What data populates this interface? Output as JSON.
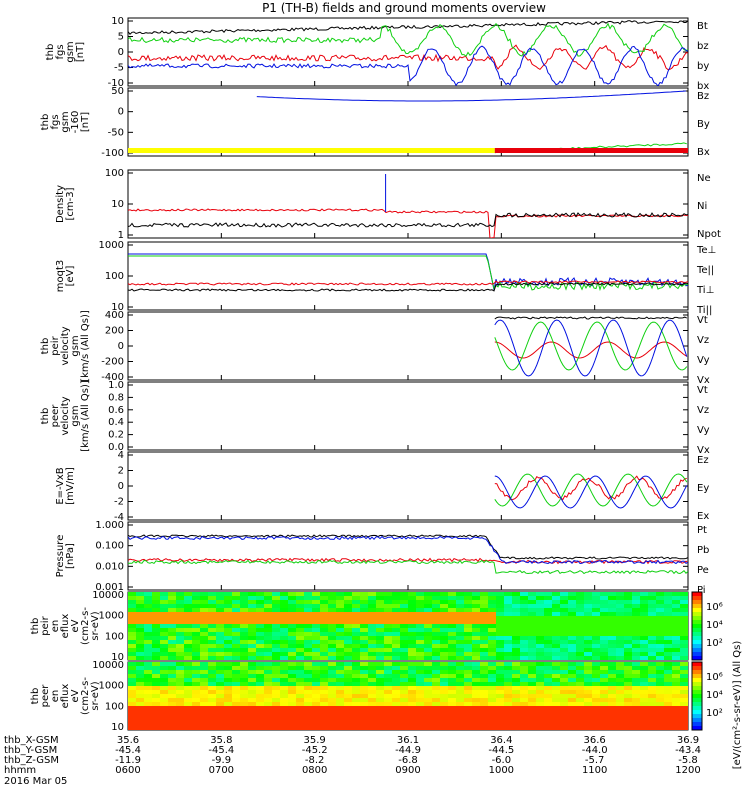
{
  "title": "P1 (TH-B) fields and ground moments overview",
  "colors": {
    "black": "#000000",
    "red": "#e8000b",
    "green": "#10d010",
    "blue": "#0010e0",
    "yellow": "#ffff00"
  },
  "chart_data": [
    {
      "type": "line",
      "ylabel": [
        "thb",
        "fgs",
        "gsm",
        "[nT]"
      ],
      "ylim": [
        -10,
        10
      ],
      "yticks": [
        "10",
        "5",
        "0",
        "-5",
        "-10"
      ],
      "series": [
        {
          "name": "Bt",
          "color": "black"
        },
        {
          "name": "bz",
          "color": "red"
        },
        {
          "name": "by",
          "color": "green"
        },
        {
          "name": "bx",
          "color": "blue"
        }
      ]
    },
    {
      "type": "line",
      "ylabel": [
        "thb",
        "fgs",
        "gsm",
        "-160",
        "[nT]"
      ],
      "ylim": [
        -150,
        50
      ],
      "yticks": [
        "50",
        "0",
        "-50",
        "-100"
      ],
      "series": [
        {
          "name": "Bz",
          "color": "red"
        },
        {
          "name": "By",
          "color": "green"
        },
        {
          "name": "Bx",
          "color": "blue"
        }
      ]
    },
    {
      "type": "line",
      "ylabel": [
        "Density",
        "[cm-3]"
      ],
      "log": true,
      "yticks": [
        "100",
        "10",
        "1"
      ],
      "series": [
        {
          "name": "Ne",
          "color": "red"
        },
        {
          "name": "Ni",
          "color": "black"
        },
        {
          "name": "Npot",
          "color": "blue"
        }
      ]
    },
    {
      "type": "line",
      "ylabel": [
        "moqt3",
        "[eV]"
      ],
      "log": true,
      "yticks": [
        "1000",
        "100",
        "10"
      ],
      "series": [
        {
          "name": "Te⊥",
          "color": "red"
        },
        {
          "name": "Te||",
          "color": "black"
        },
        {
          "name": "Ti⊥",
          "color": "green"
        },
        {
          "name": "Ti||",
          "color": "green"
        }
      ]
    },
    {
      "type": "line",
      "ylabel": [
        "thb",
        "peir",
        "velocity",
        "gsm",
        "[km/s (All Qs)]"
      ],
      "ylim": [
        -400,
        400
      ],
      "yticks": [
        "400",
        "200",
        "0",
        "-200",
        "-400"
      ],
      "series": [
        {
          "name": "Vt",
          "color": "black"
        },
        {
          "name": "Vz",
          "color": "red"
        },
        {
          "name": "Vy",
          "color": "green"
        },
        {
          "name": "Vx",
          "color": "blue"
        }
      ]
    },
    {
      "type": "line",
      "ylabel": [
        "thb",
        "peer",
        "velocity",
        "gsm",
        "[km/s (All Qs)]"
      ],
      "ylim": [
        0,
        1
      ],
      "yticks": [
        "1.0",
        "0.8",
        "0.6",
        "0.4",
        "0.2",
        "0.0"
      ],
      "series": [
        {
          "name": "Vt",
          "color": "black"
        },
        {
          "name": "Vz",
          "color": "red"
        },
        {
          "name": "Vy",
          "color": "green"
        },
        {
          "name": "Vx",
          "color": "blue"
        }
      ]
    },
    {
      "type": "line",
      "ylabel": [
        "E=-VxB",
        "[mV/m]"
      ],
      "ylim": [
        -4,
        4
      ],
      "yticks": [
        "4",
        "2",
        "0",
        "-2",
        "-4"
      ],
      "series": [
        {
          "name": "Ez",
          "color": "red"
        },
        {
          "name": "Ey",
          "color": "green"
        },
        {
          "name": "Ex",
          "color": "blue"
        }
      ]
    },
    {
      "type": "line",
      "ylabel": [
        "Pressure",
        "[nPa]"
      ],
      "log": true,
      "yticks": [
        "1.000",
        "0.100",
        "0.010",
        "0.001"
      ],
      "series": [
        {
          "name": "Pt",
          "color": "black"
        },
        {
          "name": "Pb",
          "color": "red"
        },
        {
          "name": "Pe",
          "color": "green"
        },
        {
          "name": "Pi",
          "color": "blue"
        }
      ]
    },
    {
      "type": "heatmap",
      "ylabel": [
        "thb",
        "peir",
        "en",
        "eflux",
        "eV",
        "(cm2-s-",
        "sr-eV)"
      ],
      "log": true,
      "yticks": [
        "10000",
        "1000",
        "100",
        "10"
      ],
      "colorbar": {
        "ticks": [
          "10⁶",
          "10⁴",
          "10²"
        ]
      }
    },
    {
      "type": "heatmap",
      "ylabel": [
        "thb",
        "peer",
        "en",
        "eflux",
        "eV",
        "(cm2-s-",
        "sr-eV)"
      ],
      "log": true,
      "yticks": [
        "10000",
        "1000",
        "100",
        "10"
      ],
      "colorbar": {
        "ticks": [
          "10⁶",
          "10⁴",
          "10²"
        ]
      }
    }
  ],
  "colorbar_label": "[eV/(cm²-s-sr-eV)] (All Qs)",
  "xaxis": {
    "row_labels": [
      "thb_X-GSM",
      "thb_Y-GSM",
      "thb_Z-GSM",
      "hhmm"
    ],
    "date": "2016 Mar 05",
    "ticks": [
      [
        "35.6",
        "-45.4",
        "-11.9",
        "0600"
      ],
      [
        "35.8",
        "-45.4",
        "-9.9",
        "0700"
      ],
      [
        "35.9",
        "-45.2",
        "-8.2",
        "0800"
      ],
      [
        "36.1",
        "-44.9",
        "-6.8",
        "0900"
      ],
      [
        "36.4",
        "-44.5",
        "-6.0",
        "1000"
      ],
      [
        "36.6",
        "-44.0",
        "-5.7",
        "1100"
      ],
      [
        "36.9",
        "-43.4",
        "-5.8",
        "1200"
      ]
    ]
  }
}
